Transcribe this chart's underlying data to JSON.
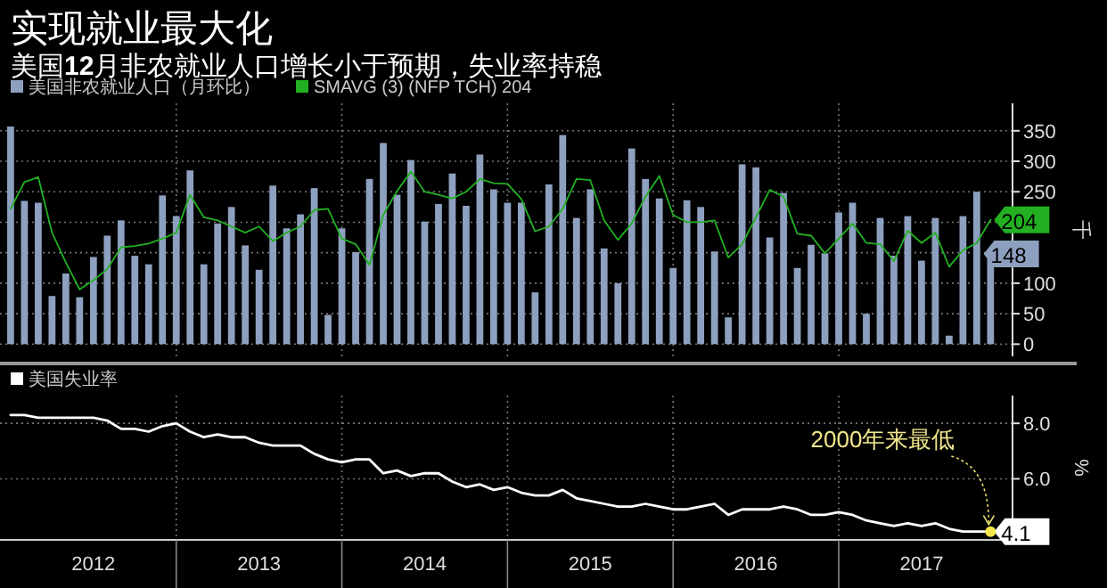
{
  "chart_data": [
    {
      "type": "bar",
      "title": "实现就业最大化",
      "subtitle": "美国**12**月非农就业人口增长小于预期，失业率持稳",
      "ylabel": "千",
      "legend": "top left",
      "grid": true,
      "tick_labels": "y",
      "x": [
        "2012-01",
        "2012-02",
        "2012-03",
        "2012-04",
        "2012-05",
        "2012-06",
        "2012-07",
        "2012-08",
        "2012-09",
        "2012-10",
        "2012-11",
        "2012-12",
        "2013-01",
        "2013-02",
        "2013-03",
        "2013-04",
        "2013-05",
        "2013-06",
        "2013-07",
        "2013-08",
        "2013-09",
        "2013-10",
        "2013-11",
        "2013-12",
        "2014-01",
        "2014-02",
        "2014-03",
        "2014-04",
        "2014-05",
        "2014-06",
        "2014-07",
        "2014-08",
        "2014-09",
        "2014-10",
        "2014-11",
        "2014-12",
        "2015-01",
        "2015-02",
        "2015-03",
        "2015-04",
        "2015-05",
        "2015-06",
        "2015-07",
        "2015-08",
        "2015-09",
        "2015-10",
        "2015-11",
        "2015-12",
        "2016-01",
        "2016-02",
        "2016-03",
        "2016-04",
        "2016-05",
        "2016-06",
        "2016-07",
        "2016-08",
        "2016-09",
        "2016-10",
        "2016-11",
        "2016-12",
        "2017-01",
        "2017-02",
        "2017-03",
        "2017-04",
        "2017-05",
        "2017-06",
        "2017-07",
        "2017-08",
        "2017-09",
        "2017-10",
        "2017-11",
        "2017-12"
      ],
      "xlim": [
        "2011-12-08",
        "2018-01-19"
      ],
      "ylim": [
        -20,
        395
      ],
      "yticks": [
        0,
        50,
        100,
        {
          "value": 150,
          "label": null
        },
        {
          "value": 200,
          "label": null
        },
        250,
        300,
        350
      ],
      "series": [
        {
          "name": "美国非农就业人口（月环比）",
          "color": "#8ea0c0",
          "values": [
            357,
            235,
            232,
            79,
            116,
            77,
            143,
            178,
            203,
            145,
            131,
            244,
            210,
            285,
            131,
            198,
            225,
            162,
            122,
            260,
            190,
            213,
            256,
            48,
            190,
            151,
            271,
            330,
            245,
            302,
            201,
            230,
            280,
            227,
            311,
            254,
            232,
            232,
            85,
            262,
            343,
            207,
            254,
            157,
            100,
            321,
            271,
            239,
            125,
            236,
            225,
            152,
            44,
            295,
            290,
            175,
            248,
            125,
            163,
            149,
            216,
            232,
            50,
            207,
            145,
            210,
            137,
            207,
            14,
            210,
            250,
            148
          ],
          "value_labels": [
            null,
            null,
            null,
            null,
            null,
            null,
            null,
            null,
            null,
            null,
            null,
            null,
            null,
            null,
            null,
            null,
            null,
            null,
            null,
            null,
            null,
            null,
            null,
            null,
            null,
            null,
            null,
            null,
            null,
            null,
            null,
            null,
            null,
            null,
            null,
            null,
            null,
            null,
            null,
            null,
            null,
            null,
            null,
            null,
            null,
            null,
            null,
            null,
            null,
            null,
            null,
            null,
            null,
            null,
            null,
            null,
            null,
            null,
            null,
            null,
            null,
            null,
            null,
            null,
            null,
            null,
            null,
            null,
            null,
            null,
            null,
            "148"
          ]
        },
        {
          "name": "SMAVG (3) (NFP TCH) 204",
          "type": "line",
          "color": "#22b022",
          "values": [
            222,
            266,
            274,
            183,
            134,
            90,
            105,
            123,
            159,
            161,
            165,
            173,
            183,
            245,
            208,
            203,
            193,
            183,
            193,
            169,
            183,
            193,
            220,
            222,
            173,
            164,
            130,
            212,
            251,
            283,
            250,
            245,
            239,
            250,
            271,
            264,
            263,
            238,
            185,
            193,
            222,
            271,
            269,
            203,
            171,
            198,
            242,
            276,
            212,
            200,
            200,
            203,
            142,
            164,
            208,
            253,
            242,
            181,
            178,
            149,
            173,
            198,
            166,
            164,
            136,
            186,
            166,
            183,
            127,
            154,
            166,
            204
          ],
          "value_labels": [
            null,
            null,
            null,
            null,
            null,
            null,
            null,
            null,
            null,
            null,
            null,
            null,
            null,
            null,
            null,
            null,
            null,
            null,
            null,
            null,
            null,
            null,
            null,
            null,
            null,
            null,
            null,
            null,
            null,
            null,
            null,
            null,
            null,
            null,
            null,
            null,
            null,
            null,
            null,
            null,
            null,
            null,
            null,
            null,
            null,
            null,
            null,
            null,
            null,
            null,
            null,
            null,
            null,
            null,
            null,
            null,
            null,
            null,
            null,
            null,
            null,
            null,
            null,
            null,
            null,
            null,
            null,
            null,
            null,
            null,
            null,
            "204"
          ]
        }
      ]
    },
    {
      "type": "line",
      "ylabel": "%",
      "legend": "top left",
      "grid": true,
      "x": [
        "2012-01",
        "2012-02",
        "2012-03",
        "2012-04",
        "2012-05",
        "2012-06",
        "2012-07",
        "2012-08",
        "2012-09",
        "2012-10",
        "2012-11",
        "2012-12",
        "2013-01",
        "2013-02",
        "2013-03",
        "2013-04",
        "2013-05",
        "2013-06",
        "2013-07",
        "2013-08",
        "2013-09",
        "2013-10",
        "2013-11",
        "2013-12",
        "2014-01",
        "2014-02",
        "2014-03",
        "2014-04",
        "2014-05",
        "2014-06",
        "2014-07",
        "2014-08",
        "2014-09",
        "2014-10",
        "2014-11",
        "2014-12",
        "2015-01",
        "2015-02",
        "2015-03",
        "2015-04",
        "2015-05",
        "2015-06",
        "2015-07",
        "2015-08",
        "2015-09",
        "2015-10",
        "2015-11",
        "2015-12",
        "2016-01",
        "2016-02",
        "2016-03",
        "2016-04",
        "2016-05",
        "2016-06",
        "2016-07",
        "2016-08",
        "2016-09",
        "2016-10",
        "2016-11",
        "2016-12",
        "2017-01",
        "2017-02",
        "2017-03",
        "2017-04",
        "2017-05",
        "2017-06",
        "2017-07",
        "2017-08",
        "2017-09",
        "2017-10",
        "2017-11",
        "2017-12"
      ],
      "xlim": [
        "2011-12-08",
        "2018-01-19"
      ],
      "xticks": [
        {
          "value": "2012-07-01",
          "label": "2012"
        },
        {
          "value": "2013-07-01",
          "label": "2013"
        },
        {
          "value": "2014-07-01",
          "label": "2014"
        },
        {
          "value": "2015-07-01",
          "label": "2015"
        },
        {
          "value": "2016-07-01",
          "label": "2016"
        },
        {
          "value": "2017-07-01",
          "label": "2017"
        }
      ],
      "ylim": [
        3.8,
        9.0
      ],
      "yticks": [
        {
          "value": 6,
          "label": "6.0"
        },
        {
          "value": 8,
          "label": "8.0"
        }
      ],
      "annotations": [
        {
          "text": "2000年来最低",
          "x": "2017-12",
          "y": 4.1
        }
      ],
      "series": [
        {
          "name": "美国失业率",
          "color": "#ffffff",
          "values": [
            8.3,
            8.3,
            8.2,
            8.2,
            8.2,
            8.2,
            8.2,
            8.1,
            7.8,
            7.8,
            7.7,
            7.9,
            8.0,
            7.7,
            7.5,
            7.6,
            7.5,
            7.5,
            7.3,
            7.2,
            7.2,
            7.2,
            6.9,
            6.7,
            6.6,
            6.7,
            6.7,
            6.2,
            6.3,
            6.1,
            6.2,
            6.2,
            5.9,
            5.7,
            5.8,
            5.6,
            5.7,
            5.5,
            5.4,
            5.4,
            5.6,
            5.3,
            5.2,
            5.1,
            5.0,
            5.0,
            5.1,
            5.0,
            4.9,
            4.9,
            5.0,
            5.1,
            4.7,
            4.9,
            4.9,
            4.9,
            5.0,
            4.9,
            4.7,
            4.7,
            4.8,
            4.7,
            4.5,
            4.4,
            4.3,
            4.4,
            4.3,
            4.4,
            4.2,
            4.1,
            4.1,
            4.1
          ],
          "value_labels": [
            null,
            null,
            null,
            null,
            null,
            null,
            null,
            null,
            null,
            null,
            null,
            null,
            null,
            null,
            null,
            null,
            null,
            null,
            null,
            null,
            null,
            null,
            null,
            null,
            null,
            null,
            null,
            null,
            null,
            null,
            null,
            null,
            null,
            null,
            null,
            null,
            null,
            null,
            null,
            null,
            null,
            null,
            null,
            null,
            null,
            null,
            null,
            null,
            null,
            null,
            null,
            null,
            null,
            null,
            null,
            null,
            null,
            null,
            null,
            null,
            null,
            null,
            null,
            null,
            null,
            null,
            null,
            null,
            null,
            null,
            null,
            "4.1"
          ]
        }
      ]
    }
  ]
}
